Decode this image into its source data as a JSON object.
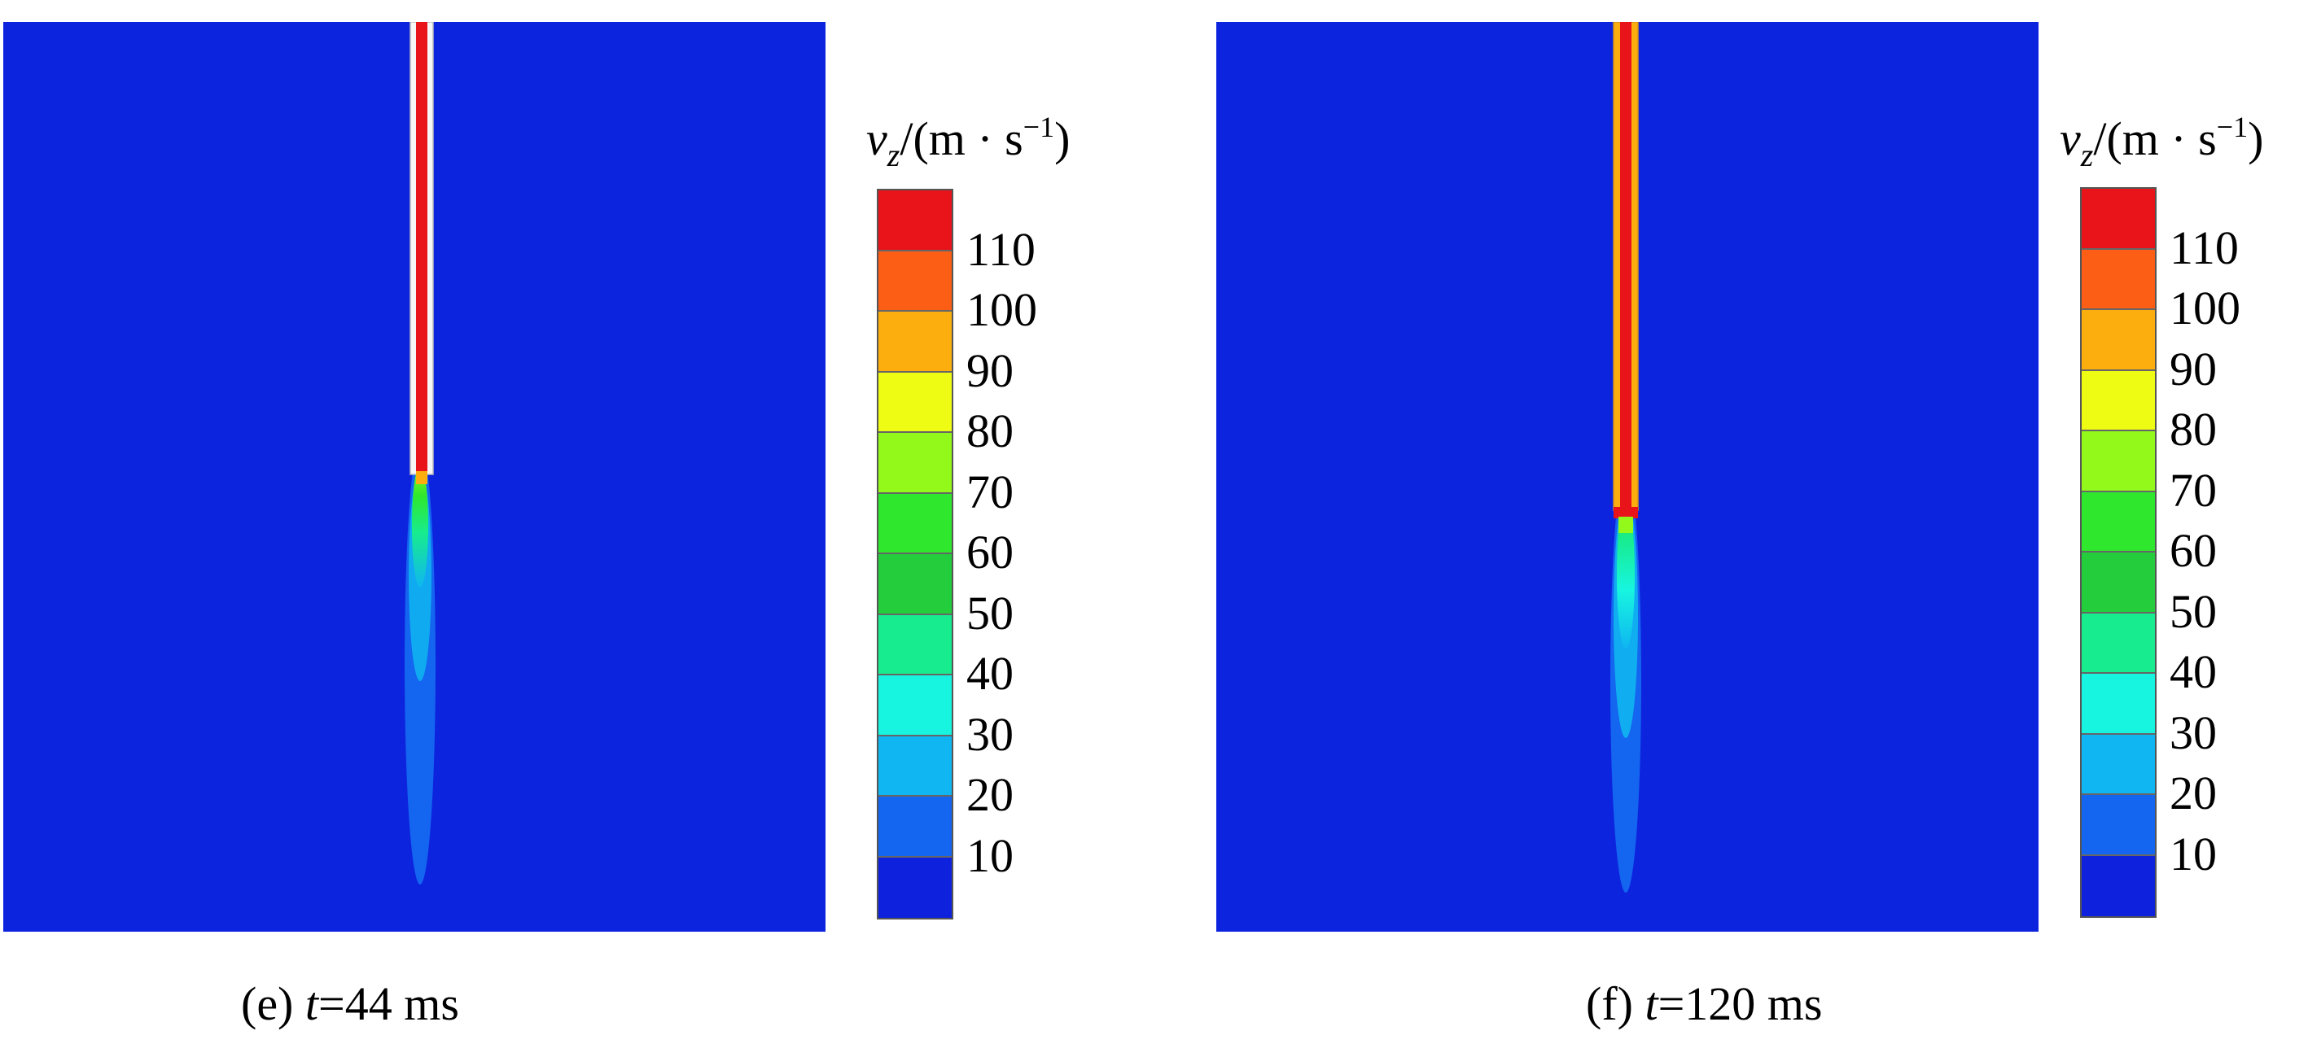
{
  "panels": [
    {
      "id": "e",
      "caption_prefix": "(e) ",
      "caption_var": "t",
      "caption_suffix": "=44 ms"
    },
    {
      "id": "f",
      "caption_prefix": "(f) ",
      "caption_var": "t",
      "caption_suffix": "=120 ms"
    }
  ],
  "colorbar": {
    "title_var": "v",
    "title_sub": "z",
    "title_unit_prefix": "/(m · s",
    "title_unit_sup": "−1",
    "title_unit_suffix": ")",
    "ticks": [
      "110",
      "100",
      "90",
      "80",
      "70",
      "60",
      "50",
      "40",
      "30",
      "20",
      "10"
    ],
    "colors": [
      "#e8141a",
      "#fb5e14",
      "#fcae0e",
      "#eefc14",
      "#93f91a",
      "#2fe82d",
      "#23cd3c",
      "#17ec8e",
      "#17f5e0",
      "#0fb6f1",
      "#1465ef",
      "#0e22de"
    ]
  },
  "colors": {
    "background_field": "#0d24df",
    "jet_core": "#e8141a",
    "tube_wall": "#f6f6f6"
  }
}
